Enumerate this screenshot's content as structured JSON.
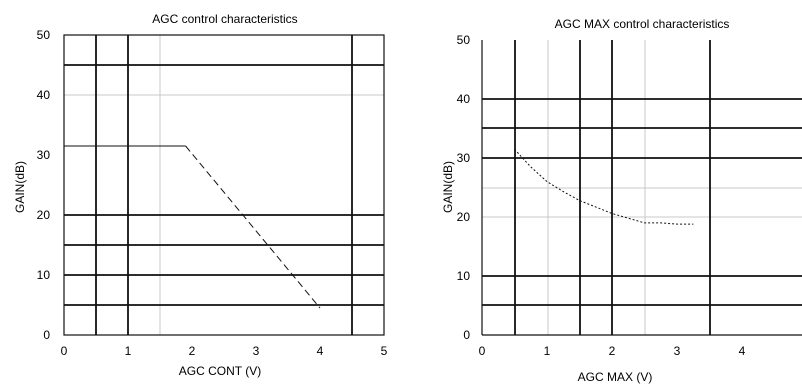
{
  "chart_data": [
    {
      "type": "line",
      "title": "AGC control characteristics",
      "xlabel": "AGC CONT (V)",
      "ylabel": "GAIN(dB)",
      "xlim": [
        0,
        5
      ],
      "ylim": [
        0,
        50
      ],
      "x_ticks": [
        "0",
        "1",
        "2",
        "3",
        "4",
        "5"
      ],
      "y_ticks": [
        "0",
        "10",
        "20",
        "30",
        "40",
        "50"
      ],
      "grid": true,
      "series": [
        {
          "x": [
            0,
            1.9,
            4.0
          ],
          "y": [
            31.5,
            31.5,
            4.5
          ]
        }
      ]
    },
    {
      "type": "line",
      "title": "AGC MAX control characteristics",
      "xlabel": "AGC MAX (V)",
      "ylabel": "GAIN(dB)",
      "xlim": [
        0,
        4
      ],
      "ylim": [
        0,
        50
      ],
      "x_ticks": [
        "0",
        "1",
        "2",
        "3",
        "4"
      ],
      "y_ticks": [
        "0",
        "10",
        "20",
        "30",
        "40",
        "50"
      ],
      "grid": true,
      "series": [
        {
          "x": [
            0.5,
            0.75,
            1.0,
            1.25,
            1.5,
            1.75,
            2.0,
            2.25,
            2.5,
            2.75,
            3.0,
            3.25
          ],
          "y": [
            31.5,
            28.5,
            26.0,
            24.3,
            22.8,
            21.7,
            20.6,
            19.8,
            19.0,
            19.0,
            18.8,
            18.8
          ]
        }
      ]
    }
  ]
}
